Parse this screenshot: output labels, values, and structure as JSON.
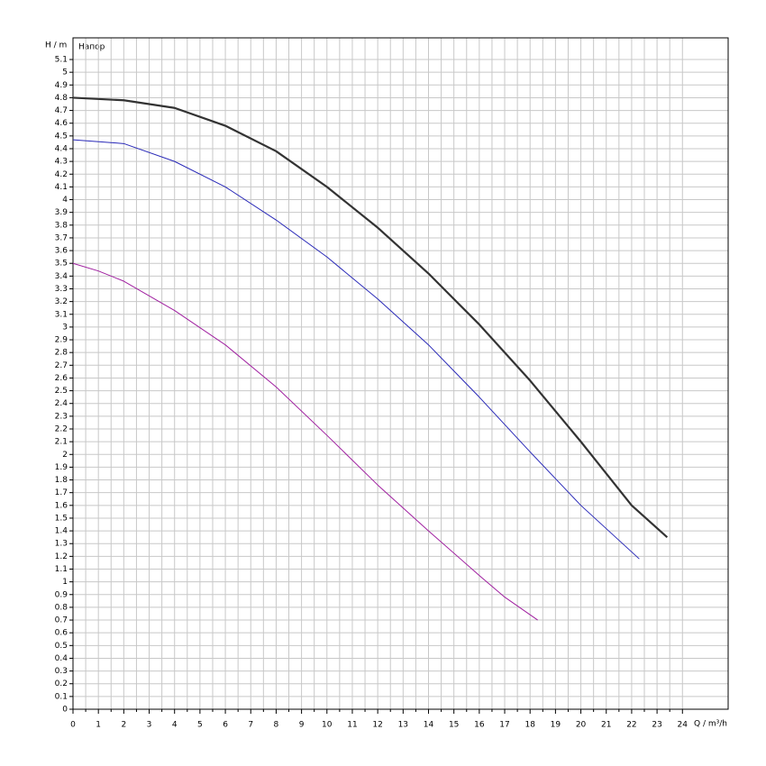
{
  "chart_data": {
    "type": "line",
    "ylabel": "H / m",
    "xlabel": "Q / m³/h",
    "annotation": "Напор",
    "xlim": [
      0,
      25.8
    ],
    "ylim": [
      0,
      5.27
    ],
    "xticks": [
      0,
      1,
      2,
      3,
      4,
      5,
      6,
      7,
      8,
      9,
      10,
      11,
      12,
      13,
      14,
      15,
      16,
      17,
      18,
      19,
      20,
      21,
      22,
      23,
      24
    ],
    "yticks": [
      0,
      0.1,
      0.2,
      0.3,
      0.4,
      0.5,
      0.6,
      0.7,
      0.8,
      0.9,
      1,
      1.1,
      1.2,
      1.3,
      1.4,
      1.5,
      1.6,
      1.7,
      1.8,
      1.9,
      2,
      2.1,
      2.2,
      2.3,
      2.4,
      2.5,
      2.6,
      2.7,
      2.8,
      2.9,
      3,
      3.1,
      3.2,
      3.3,
      3.4,
      3.5,
      3.6,
      3.7,
      3.8,
      3.9,
      4,
      4.1,
      4.2,
      4.3,
      4.4,
      4.5,
      4.6,
      4.7,
      4.8,
      4.9,
      5,
      5.1
    ],
    "grid": true,
    "series": [
      {
        "color": "#333333",
        "width": 2.2,
        "x": [
          0,
          2,
          4,
          6,
          8,
          10,
          12,
          14,
          16,
          18,
          20,
          22,
          23.4
        ],
        "values": [
          4.8,
          4.78,
          4.72,
          4.58,
          4.38,
          4.1,
          3.78,
          3.42,
          3.02,
          2.58,
          2.1,
          1.6,
          1.35
        ]
      },
      {
        "color": "#2a2ab8",
        "width": 1,
        "x": [
          0,
          2,
          4,
          6,
          8,
          10,
          12,
          14,
          16,
          18,
          20,
          22.3
        ],
        "values": [
          4.47,
          4.44,
          4.3,
          4.1,
          3.84,
          3.55,
          3.22,
          2.86,
          2.45,
          2.02,
          1.6,
          1.18
        ]
      },
      {
        "color": "#a020a0",
        "width": 1,
        "x": [
          0,
          1,
          2,
          4,
          6,
          8,
          10,
          12,
          14,
          16,
          17,
          18.3
        ],
        "values": [
          3.5,
          3.44,
          3.36,
          3.13,
          2.86,
          2.53,
          2.15,
          1.76,
          1.4,
          1.05,
          0.88,
          0.7
        ]
      }
    ]
  }
}
